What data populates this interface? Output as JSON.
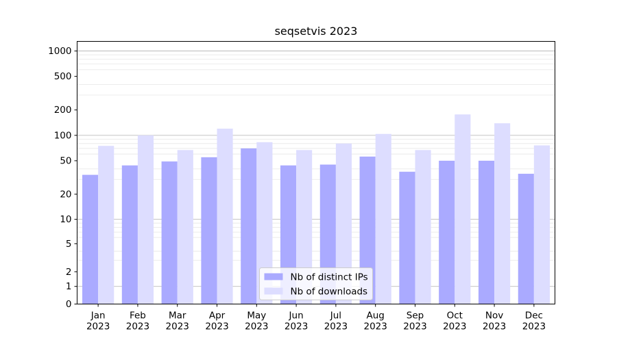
{
  "chart_data": {
    "type": "bar",
    "title": "seqsetvis 2023",
    "xlabel": "",
    "ylabel": "",
    "y_scale": "symlog",
    "y_ticks": [
      0,
      1,
      2,
      5,
      10,
      20,
      50,
      100,
      200,
      500,
      1000
    ],
    "y_tick_labels": [
      "0",
      "1",
      "2",
      "5",
      "10",
      "20",
      "50",
      "100",
      "200",
      "500",
      "1000"
    ],
    "grid": true,
    "legend_position": "bottom-center",
    "categories": [
      {
        "month": "Jan",
        "year": "2023"
      },
      {
        "month": "Feb",
        "year": "2023"
      },
      {
        "month": "Mar",
        "year": "2023"
      },
      {
        "month": "Apr",
        "year": "2023"
      },
      {
        "month": "May",
        "year": "2023"
      },
      {
        "month": "Jun",
        "year": "2023"
      },
      {
        "month": "Jul",
        "year": "2023"
      },
      {
        "month": "Aug",
        "year": "2023"
      },
      {
        "month": "Sep",
        "year": "2023"
      },
      {
        "month": "Oct",
        "year": "2023"
      },
      {
        "month": "Nov",
        "year": "2023"
      },
      {
        "month": "Dec",
        "year": "2023"
      }
    ],
    "series": [
      {
        "name": "Nb of distinct IPs",
        "color": "#aaaaff",
        "values": [
          34,
          44,
          49,
          55,
          70,
          44,
          45,
          56,
          37,
          50,
          50,
          35
        ]
      },
      {
        "name": "Nb of downloads",
        "color": "#ddddff",
        "values": [
          75,
          100,
          67,
          120,
          83,
          67,
          80,
          104,
          67,
          177,
          139,
          76
        ]
      }
    ]
  }
}
